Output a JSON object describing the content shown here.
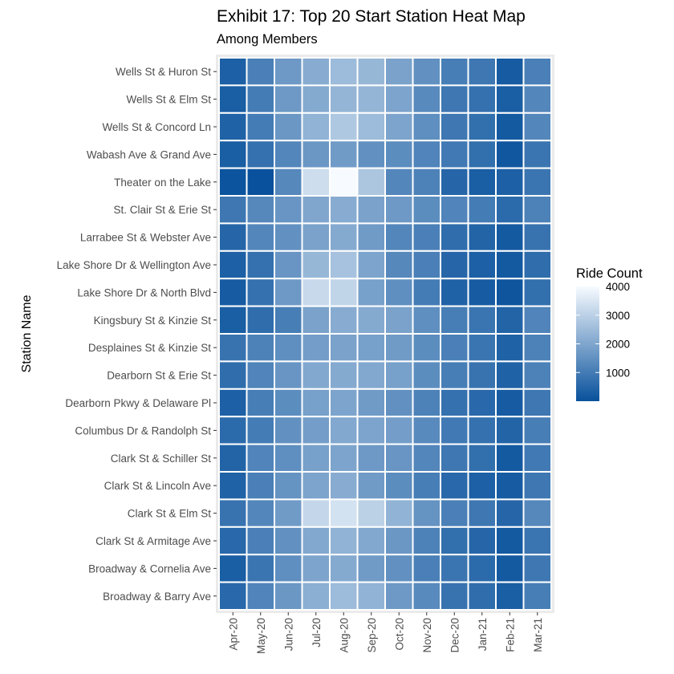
{
  "chart_data": {
    "type": "heatmap",
    "title": "Exhibit 17: Top 20 Start Station Heat Map",
    "subtitle": "Among Members",
    "xlabel": "",
    "ylabel": "Station Name",
    "x_categories": [
      "Apr-20",
      "May-20",
      "Jun-20",
      "Jul-20",
      "Aug-20",
      "Sep-20",
      "Oct-20",
      "Nov-20",
      "Dec-20",
      "Jan-21",
      "Feb-21",
      "Mar-21"
    ],
    "y_categories": [
      "Wells St & Huron St",
      "Wells St & Elm St",
      "Wells St & Concord Ln",
      "Wabash Ave & Grand Ave",
      "Theater on the Lake",
      "St. Clair St & Erie St",
      "Larrabee St & Webster Ave",
      "Lake Shore Dr & Wellington Ave",
      "Lake Shore Dr & North Blvd",
      "Kingsbury St & Kinzie St",
      "Desplaines St & Kinzie St",
      "Dearborn St & Erie St",
      "Dearborn Pkwy & Delaware Pl",
      "Columbus Dr & Randolph St",
      "Clark St & Schiller St",
      "Clark St & Lincoln Ave",
      "Clark St & Elm St",
      "Clark St & Armitage Ave",
      "Broadway & Cornelia Ave",
      "Broadway & Barry Ave"
    ],
    "values": [
      [
        350,
        1100,
        1700,
        2150,
        2500,
        2400,
        1900,
        1500,
        1050,
        900,
        250,
        1100
      ],
      [
        300,
        1000,
        1700,
        2100,
        2350,
        2350,
        1950,
        1350,
        900,
        750,
        300,
        1250
      ],
      [
        400,
        1000,
        1650,
        2300,
        2800,
        2500,
        1950,
        1450,
        900,
        700,
        200,
        1250
      ],
      [
        300,
        750,
        1250,
        1650,
        1750,
        1500,
        1400,
        1200,
        950,
        700,
        150,
        850
      ],
      [
        80,
        10,
        1300,
        3300,
        4000,
        2750,
        1250,
        1150,
        500,
        300,
        350,
        850
      ],
      [
        900,
        1300,
        1600,
        2000,
        2150,
        1900,
        1700,
        1400,
        1200,
        1000,
        600,
        1150
      ],
      [
        500,
        1250,
        1500,
        1900,
        2100,
        1750,
        1250,
        1100,
        650,
        450,
        200,
        800
      ],
      [
        350,
        750,
        1600,
        2400,
        2650,
        1950,
        1300,
        1100,
        500,
        350,
        200,
        650
      ],
      [
        250,
        750,
        1700,
        3200,
        3100,
        1850,
        1450,
        1000,
        400,
        250,
        100,
        700
      ],
      [
        300,
        650,
        1050,
        1900,
        2150,
        2100,
        1900,
        1450,
        1050,
        850,
        450,
        1200
      ],
      [
        800,
        1150,
        1450,
        1800,
        1900,
        1850,
        1750,
        1400,
        1100,
        850,
        400,
        1150
      ],
      [
        650,
        1200,
        1600,
        2050,
        2100,
        2050,
        1850,
        1400,
        1050,
        800,
        400,
        1150
      ],
      [
        350,
        1050,
        1400,
        1850,
        1950,
        1750,
        1500,
        1150,
        750,
        550,
        250,
        900
      ],
      [
        600,
        1000,
        1500,
        1800,
        2050,
        1950,
        1800,
        1350,
        950,
        750,
        450,
        1050
      ],
      [
        450,
        1200,
        1450,
        1850,
        1950,
        1700,
        1600,
        1250,
        900,
        700,
        200,
        950
      ],
      [
        400,
        1100,
        1550,
        1950,
        2150,
        1750,
        1400,
        1050,
        550,
        350,
        250,
        900
      ],
      [
        800,
        1250,
        1750,
        3150,
        3400,
        3000,
        2300,
        1550,
        1100,
        900,
        500,
        1300
      ],
      [
        550,
        1100,
        1500,
        2050,
        2300,
        2050,
        1650,
        1150,
        700,
        500,
        200,
        850
      ],
      [
        300,
        850,
        1450,
        1950,
        2100,
        1750,
        1500,
        1100,
        850,
        600,
        200,
        900
      ],
      [
        550,
        1200,
        1650,
        2200,
        2500,
        2300,
        1700,
        1350,
        800,
        650,
        300,
        1050
      ]
    ],
    "color_low": "#08519c",
    "color_high": "#f7fbff",
    "legend": {
      "title": "Ride Count",
      "position": "right",
      "breaks": [
        1000,
        2000,
        3000,
        4000
      ],
      "labels": [
        "1000",
        "2000",
        "3000",
        "4000"
      ],
      "min": 0,
      "max": 4000
    },
    "panel_background": "#ebebeb",
    "tile_border": "#ffffff"
  }
}
